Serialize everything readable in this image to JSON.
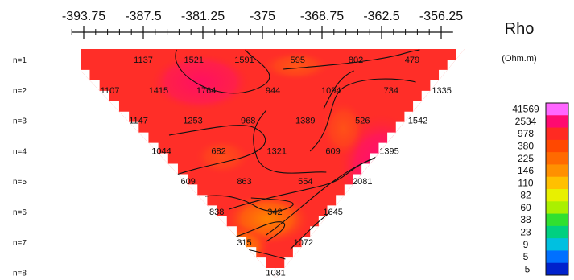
{
  "chart_data": {
    "type": "heatmap",
    "legend": {
      "title": "Rho",
      "unit": "(Ohm.m)",
      "position": "right"
    },
    "x_ticks": [
      "-393.75",
      "-387.5",
      "-381.25",
      "-375",
      "-368.75",
      "-362.5",
      "-356.25"
    ],
    "x_range": [
      -395,
      -355
    ],
    "rows": [
      "n=1",
      "n=2",
      "n=3",
      "n=4",
      "n=5",
      "n=6",
      "n=7",
      "n=8"
    ],
    "points": [
      {
        "label": "1137",
        "x": -387.5,
        "row": 1
      },
      {
        "label": "1521",
        "x": -382.2,
        "row": 1
      },
      {
        "label": "1591",
        "x": -376.9,
        "row": 1
      },
      {
        "label": "595",
        "x": -371.3,
        "row": 1
      },
      {
        "label": "802",
        "x": -365.2,
        "row": 1
      },
      {
        "label": "479",
        "x": -359.3,
        "row": 1
      },
      {
        "label": "1107",
        "x": -391.0,
        "row": 2
      },
      {
        "label": "1415",
        "x": -385.9,
        "row": 2
      },
      {
        "label": "1764",
        "x": -380.9,
        "row": 2
      },
      {
        "label": "944",
        "x": -373.9,
        "row": 2
      },
      {
        "label": "1094",
        "x": -367.8,
        "row": 2
      },
      {
        "label": "734",
        "x": -361.5,
        "row": 2
      },
      {
        "label": "1335",
        "x": -356.2,
        "row": 2
      },
      {
        "label": "1147",
        "x": -388.0,
        "row": 3
      },
      {
        "label": "1253",
        "x": -382.3,
        "row": 3
      },
      {
        "label": "968",
        "x": -376.5,
        "row": 3
      },
      {
        "label": "1389",
        "x": -370.5,
        "row": 3
      },
      {
        "label": "526",
        "x": -364.5,
        "row": 3
      },
      {
        "label": "1542",
        "x": -358.7,
        "row": 3
      },
      {
        "label": "1044",
        "x": -385.6,
        "row": 4
      },
      {
        "label": "682",
        "x": -379.6,
        "row": 4
      },
      {
        "label": "1321",
        "x": -373.5,
        "row": 4
      },
      {
        "label": "609",
        "x": -367.6,
        "row": 4
      },
      {
        "label": "1395",
        "x": -361.7,
        "row": 4
      },
      {
        "label": "609",
        "x": -382.8,
        "row": 5
      },
      {
        "label": "863",
        "x": -376.9,
        "row": 5
      },
      {
        "label": "554",
        "x": -370.5,
        "row": 5
      },
      {
        "label": "2081",
        "x": -364.5,
        "row": 5
      },
      {
        "label": "838",
        "x": -379.8,
        "row": 6
      },
      {
        "label": "342",
        "x": -373.7,
        "row": 6
      },
      {
        "label": "1645",
        "x": -367.6,
        "row": 6
      },
      {
        "label": "315",
        "x": -376.9,
        "row": 7
      },
      {
        "label": "1072",
        "x": -370.7,
        "row": 7
      },
      {
        "label": "1081",
        "x": -373.6,
        "row": 8
      }
    ],
    "color_scale": [
      {
        "label": "41569",
        "color": "#ff66ff"
      },
      {
        "label": "2534",
        "color": "#ff0a70"
      },
      {
        "label": "978",
        "color": "#ff2a22"
      },
      {
        "label": "380",
        "color": "#ff4800"
      },
      {
        "label": "225",
        "color": "#ff6a00"
      },
      {
        "label": "146",
        "color": "#ff9000"
      },
      {
        "label": "110",
        "color": "#ffc000"
      },
      {
        "label": "82",
        "color": "#e8f000"
      },
      {
        "label": "60",
        "color": "#aaf000"
      },
      {
        "label": "38",
        "color": "#30e030"
      },
      {
        "label": "23",
        "color": "#00d080"
      },
      {
        "label": "9",
        "color": "#00c0e0"
      },
      {
        "label": "5",
        "color": "#0070ff"
      },
      {
        "label": "-5",
        "color": "#0022cc"
      }
    ]
  }
}
